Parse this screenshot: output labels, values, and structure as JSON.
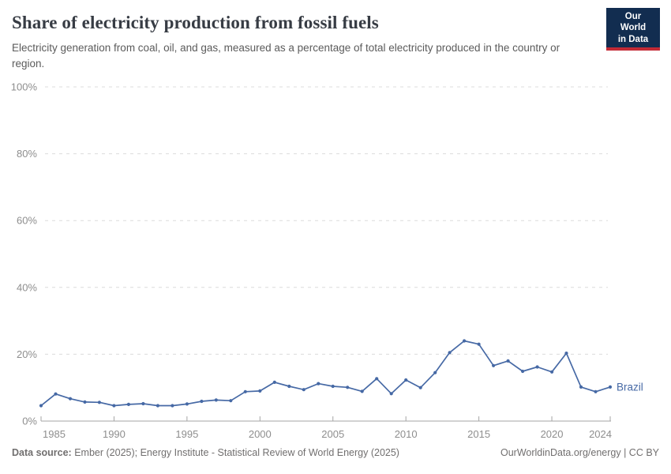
{
  "header": {
    "title": "Share of electricity production from fossil fuels",
    "subtitle": "Electricity generation from coal, oil, and gas, measured as a percentage of total electricity produced in the country or region.",
    "logo_line1": "Our World",
    "logo_line2": "in Data"
  },
  "footer": {
    "source_label": "Data source:",
    "source_text": " Ember (2025); Energy Institute - Statistical Review of World Energy (2025)",
    "license": "OurWorldinData.org/energy | CC BY"
  },
  "colors": {
    "line": "#4669a5",
    "grid": "#dcdcdc",
    "axis": "#a5a5a5",
    "axis_text": "#8e8e8e",
    "logo_bg": "#122d50",
    "logo_red": "#c32a35",
    "title_text": "#373c44",
    "subtitle_text": "#5b5b5b"
  },
  "chart_data": {
    "type": "line",
    "title": "Share of electricity production from fossil fuels",
    "xlabel": "",
    "ylabel": "",
    "ylim": [
      0,
      100
    ],
    "yticks": [
      0,
      20,
      40,
      60,
      80,
      100
    ],
    "ytick_labels": [
      "0%",
      "20%",
      "40%",
      "60%",
      "80%",
      "100%"
    ],
    "xticks": [
      1985,
      1990,
      1995,
      2000,
      2005,
      2010,
      2015,
      2020,
      2024
    ],
    "grid": "horizontal-dashed",
    "legend_position": "end-of-line-label",
    "series": [
      {
        "name": "Brazil",
        "x": [
          1985,
          1986,
          1987,
          1988,
          1989,
          1990,
          1991,
          1992,
          1993,
          1994,
          1995,
          1996,
          1997,
          1998,
          1999,
          2000,
          2001,
          2002,
          2003,
          2004,
          2005,
          2006,
          2007,
          2008,
          2009,
          2010,
          2011,
          2012,
          2013,
          2014,
          2015,
          2016,
          2017,
          2018,
          2019,
          2020,
          2021,
          2022,
          2023,
          2024
        ],
        "values": [
          4.6,
          8.1,
          6.7,
          5.7,
          5.6,
          4.6,
          5.0,
          5.2,
          4.6,
          4.6,
          5.1,
          5.9,
          6.3,
          6.1,
          8.8,
          9.0,
          11.6,
          10.4,
          9.4,
          11.2,
          10.4,
          10.1,
          8.9,
          12.7,
          8.2,
          12.3,
          10.0,
          14.5,
          20.5,
          24.0,
          23.0,
          16.6,
          18.0,
          14.9,
          16.2,
          14.7,
          20.3,
          10.2,
          8.8,
          10.2
        ]
      }
    ]
  }
}
